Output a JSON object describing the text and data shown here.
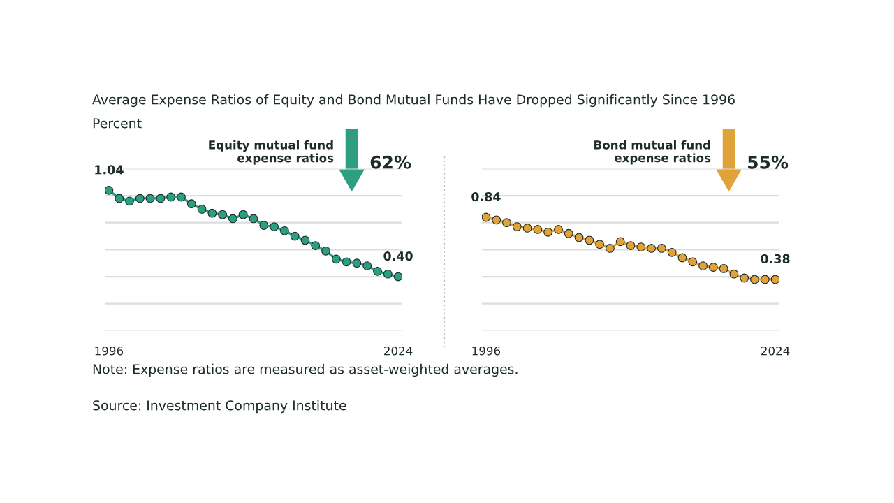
{
  "chart_data": [
    {
      "type": "line",
      "title": "Average Expense Ratios of Equity and Bond Mutual Funds Have Dropped Significantly Since 1996",
      "subtitle": "Percent",
      "x": [
        1996,
        1997,
        1998,
        1999,
        2000,
        2001,
        2002,
        2003,
        2004,
        2005,
        2006,
        2007,
        2008,
        2009,
        2010,
        2011,
        2012,
        2013,
        2014,
        2015,
        2016,
        2017,
        2018,
        2019,
        2020,
        2021,
        2022,
        2023,
        2024
      ],
      "series": [
        {
          "color": "#2e9e80",
          "values": [
            1.04,
            0.98,
            0.96,
            0.98,
            0.98,
            0.98,
            0.99,
            0.99,
            0.94,
            0.9,
            0.87,
            0.86,
            0.83,
            0.86,
            0.83,
            0.78,
            0.77,
            0.74,
            0.7,
            0.67,
            0.63,
            0.59,
            0.53,
            0.51,
            0.5,
            0.48,
            0.44,
            0.42,
            0.4
          ],
          "value_labels": [
            "1.04",
            null,
            null,
            null,
            null,
            null,
            null,
            null,
            null,
            null,
            null,
            null,
            null,
            null,
            null,
            null,
            null,
            null,
            null,
            null,
            null,
            null,
            null,
            null,
            null,
            null,
            null,
            null,
            "0.40"
          ]
        }
      ],
      "xlim": [
        1995.6,
        2024.4
      ],
      "xticks": [
        1996,
        2024
      ],
      "ylim": [
        0,
        1.2
      ],
      "yticks": [
        {
          "value": 0,
          "label": null
        },
        {
          "value": 0.2,
          "label": null
        },
        {
          "value": 0.4,
          "label": null
        },
        {
          "value": 0.6,
          "label": null
        },
        {
          "value": 0.8,
          "label": null
        },
        {
          "value": 1.0,
          "label": null
        },
        {
          "value": 1.2,
          "label": null
        }
      ],
      "grid": "y",
      "marker": "circle",
      "line_style": "solid",
      "tick_labels": "x",
      "annotations": [
        "Equity mutual fund\nexpense ratios",
        "62%",
        "Note: Expense ratios are measured as asset-weighted averages.",
        "Source: Investment Company Institute"
      ]
    },
    {
      "type": "line",
      "x": [
        1996,
        1997,
        1998,
        1999,
        2000,
        2001,
        2002,
        2003,
        2004,
        2005,
        2006,
        2007,
        2008,
        2009,
        2010,
        2011,
        2012,
        2013,
        2014,
        2015,
        2016,
        2017,
        2018,
        2019,
        2020,
        2021,
        2022,
        2023,
        2024
      ],
      "series": [
        {
          "color": "#e0a33a",
          "values": [
            0.84,
            0.82,
            0.8,
            0.77,
            0.76,
            0.75,
            0.73,
            0.75,
            0.72,
            0.69,
            0.67,
            0.64,
            0.61,
            0.66,
            0.63,
            0.62,
            0.61,
            0.61,
            0.58,
            0.54,
            0.51,
            0.48,
            0.47,
            0.46,
            0.42,
            0.39,
            0.38,
            0.38,
            0.38
          ],
          "value_labels": [
            "0.84",
            null,
            null,
            null,
            null,
            null,
            null,
            null,
            null,
            null,
            null,
            null,
            null,
            null,
            null,
            null,
            null,
            null,
            null,
            null,
            null,
            null,
            null,
            null,
            null,
            null,
            null,
            null,
            "0.38"
          ]
        }
      ],
      "xlim": [
        1995.6,
        2024.4
      ],
      "xticks": [
        1996,
        2024
      ],
      "ylim": [
        0,
        1.2
      ],
      "yticks": [
        {
          "value": 0,
          "label": null
        },
        {
          "value": 0.2,
          "label": null
        },
        {
          "value": 0.4,
          "label": null
        },
        {
          "value": 0.6,
          "label": null
        },
        {
          "value": 0.8,
          "label": null
        },
        {
          "value": 1.0,
          "label": null
        },
        {
          "value": 1.2,
          "label": null
        }
      ],
      "grid": "y",
      "marker": "circle",
      "line_style": "solid",
      "tick_labels": "x",
      "annotations": [
        "Bond mutual fund\nexpense ratios",
        "55%"
      ]
    }
  ]
}
